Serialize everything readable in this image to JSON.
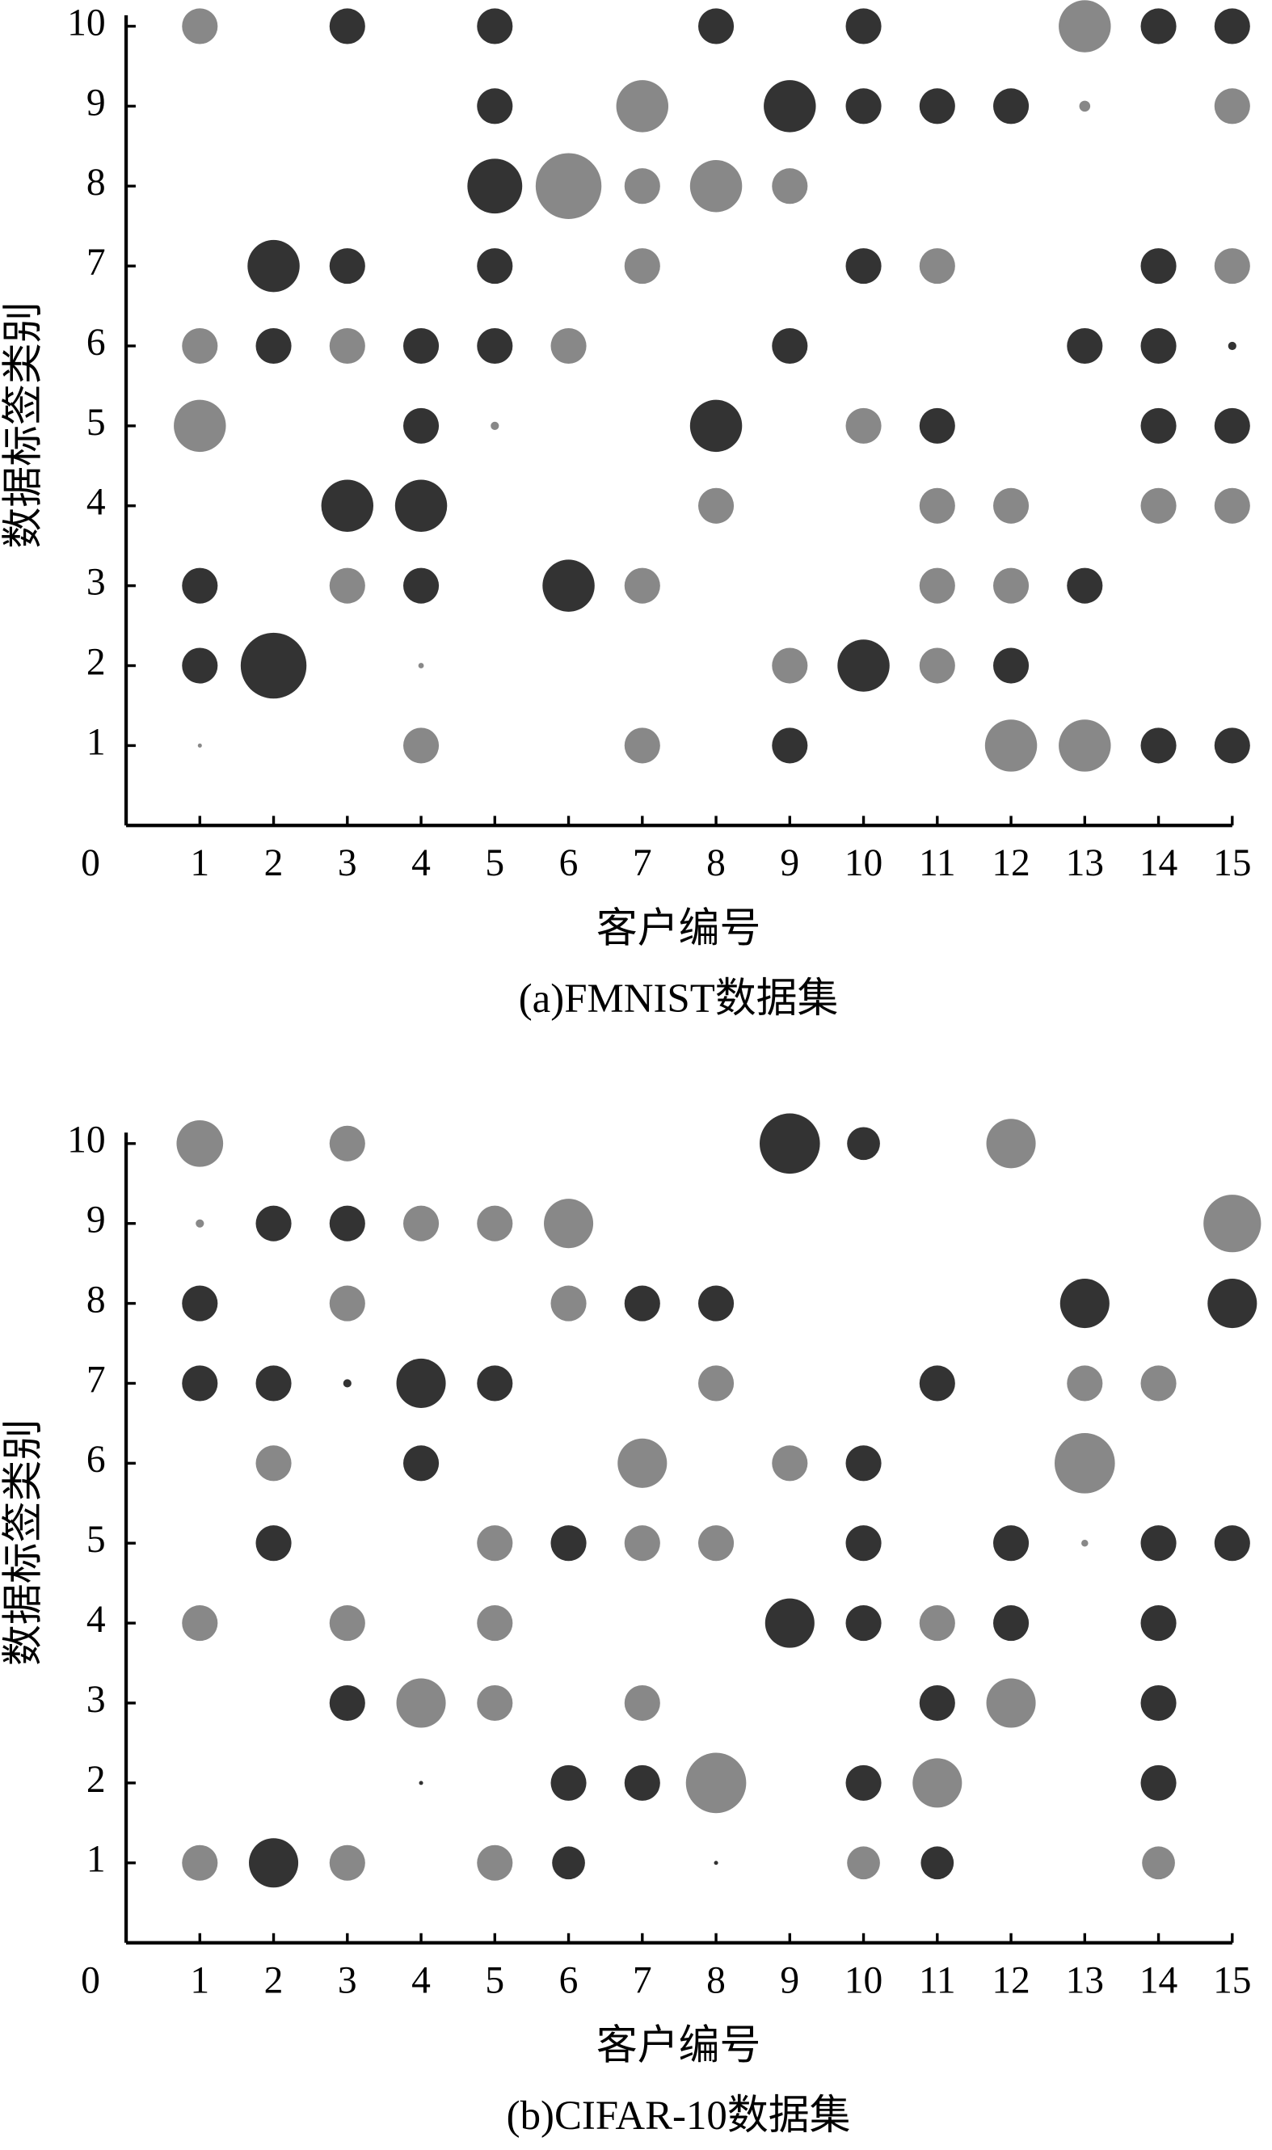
{
  "chart_data": [
    {
      "type": "bubble",
      "caption": "(a)FMNIST数据集",
      "xlabel": "客户编号",
      "ylabel": "数据标签类别",
      "xlim": [
        0,
        15
      ],
      "ylim": [
        0,
        10
      ],
      "xticks": [
        0,
        1,
        2,
        3,
        4,
        5,
        6,
        7,
        8,
        9,
        10,
        11,
        12,
        13,
        14,
        15
      ],
      "yticks": [
        1,
        2,
        3,
        4,
        5,
        6,
        7,
        8,
        9,
        10
      ],
      "series": [
        {
          "color": "#333333",
          "x": [
            3,
            5,
            8,
            10,
            14,
            15,
            5,
            9,
            10,
            11,
            12,
            5,
            2,
            3,
            5,
            10,
            14,
            2,
            4,
            5,
            9,
            13,
            14,
            15,
            4,
            8,
            11,
            14,
            15,
            3,
            4,
            1,
            4,
            6,
            13,
            1,
            2,
            10,
            12,
            9,
            14,
            15
          ],
          "y": [
            10,
            10,
            10,
            10,
            10,
            10,
            9,
            9,
            9,
            9,
            9,
            8,
            7,
            7,
            7,
            7,
            7,
            6,
            6,
            6,
            6,
            6,
            6,
            6,
            5,
            5,
            5,
            5,
            5,
            4,
            4,
            3,
            3,
            3,
            3,
            2,
            2,
            2,
            2,
            1,
            1,
            1
          ],
          "sizes": [
            13,
            13,
            13,
            13,
            13,
            13,
            13,
            19,
            13,
            13,
            13,
            20,
            19,
            13,
            13,
            13,
            13,
            13,
            13,
            13,
            13,
            13,
            13,
            3,
            13,
            19,
            13,
            13,
            13,
            19,
            19,
            13,
            13,
            19,
            13,
            13,
            24,
            19,
            13,
            13,
            13,
            13
          ]
        },
        {
          "color": "#888888",
          "x": [
            1,
            13,
            7,
            13,
            15,
            6,
            7,
            8,
            9,
            7,
            11,
            15,
            1,
            3,
            6,
            1,
            5,
            10,
            8,
            11,
            12,
            14,
            15,
            3,
            7,
            11,
            12,
            4,
            9,
            11,
            1,
            4,
            7,
            12,
            13
          ],
          "y": [
            10,
            10,
            9,
            9,
            9,
            8,
            8,
            8,
            8,
            7,
            7,
            7,
            6,
            6,
            6,
            5,
            5,
            5,
            4,
            4,
            4,
            4,
            4,
            3,
            3,
            3,
            3,
            2,
            2,
            2,
            1,
            1,
            1,
            1,
            1
          ],
          "sizes": [
            13,
            19,
            19,
            4,
            13,
            24,
            13,
            19,
            13,
            13,
            13,
            13,
            13,
            13,
            13,
            19,
            3,
            13,
            13,
            13,
            13,
            13,
            13,
            13,
            13,
            13,
            13,
            2,
            13,
            13,
            1.5,
            13,
            13,
            19,
            19
          ]
        }
      ]
    },
    {
      "type": "bubble",
      "caption": "(b)CIFAR-10数据集",
      "xlabel": "客户编号",
      "ylabel": "数据标签类别",
      "xlim": [
        0,
        15
      ],
      "ylim": [
        0,
        10
      ],
      "xticks": [
        0,
        1,
        2,
        3,
        4,
        5,
        6,
        7,
        8,
        9,
        10,
        11,
        12,
        13,
        14,
        15
      ],
      "yticks": [
        1,
        2,
        3,
        4,
        5,
        6,
        7,
        8,
        9,
        10
      ],
      "series": [
        {
          "color": "#333333",
          "x": [
            9,
            10,
            2,
            3,
            1,
            7,
            8,
            13,
            15,
            1,
            2,
            3,
            4,
            5,
            11,
            4,
            10,
            2,
            6,
            10,
            12,
            14,
            15,
            9,
            10,
            12,
            14,
            3,
            11,
            14,
            4,
            6,
            7,
            10,
            14,
            2,
            6,
            8,
            11
          ],
          "y": [
            10,
            10,
            9,
            9,
            8,
            8,
            8,
            8,
            8,
            7,
            7,
            7,
            7,
            7,
            7,
            6,
            6,
            5,
            5,
            5,
            5,
            5,
            5,
            4,
            4,
            4,
            4,
            3,
            3,
            3,
            2,
            2,
            2,
            2,
            2,
            1,
            1,
            1,
            1
          ],
          "sizes": [
            22,
            12,
            13,
            13,
            13,
            13,
            13,
            18,
            18,
            13,
            13,
            3,
            18,
            13,
            13,
            13,
            13,
            13,
            13,
            13,
            13,
            13,
            13,
            18,
            13,
            13,
            13,
            13,
            13,
            13,
            1.5,
            13,
            13,
            13,
            13,
            18,
            12,
            1.5,
            12
          ]
        },
        {
          "color": "#888888",
          "x": [
            1,
            3,
            12,
            1,
            4,
            5,
            6,
            15,
            3,
            6,
            8,
            13,
            14,
            2,
            7,
            9,
            13,
            5,
            7,
            8,
            13,
            1,
            3,
            5,
            11,
            4,
            5,
            7,
            12,
            8,
            11,
            1,
            3,
            5,
            10,
            14
          ],
          "y": [
            10,
            10,
            10,
            9,
            9,
            9,
            9,
            9,
            8,
            8,
            7,
            7,
            7,
            6,
            6,
            6,
            6,
            5,
            5,
            5,
            5,
            4,
            4,
            4,
            4,
            3,
            3,
            3,
            3,
            2,
            2,
            1,
            1,
            1,
            1,
            1
          ],
          "sizes": [
            17,
            13,
            18,
            3,
            13,
            13,
            18,
            21,
            13,
            13,
            13,
            13,
            13,
            13,
            18,
            13,
            22,
            13,
            13,
            13,
            2.5,
            13,
            13,
            13,
            13,
            18,
            13,
            13,
            18,
            22,
            18,
            13,
            13,
            13,
            12,
            12
          ]
        }
      ]
    }
  ]
}
